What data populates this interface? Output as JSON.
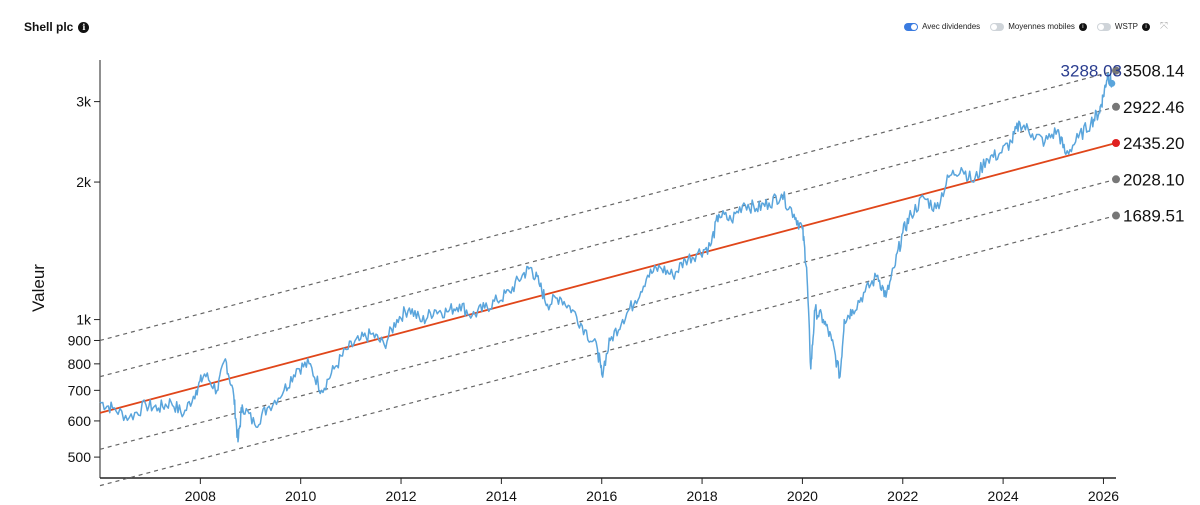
{
  "header": {
    "title": "Shell plc",
    "info_icon": "info-icon"
  },
  "toggles": [
    {
      "label": "Avec dividendes",
      "on": true
    },
    {
      "label": "Moyennes mobiles",
      "on": false,
      "info": true
    },
    {
      "label": "WSTP",
      "on": false,
      "info": true
    }
  ],
  "chart_data": {
    "type": "line",
    "ylabel": "Valeur",
    "yscale": "log",
    "ylim": [
      450,
      3700
    ],
    "xlim": [
      "2006-01-01",
      "2026-04-01"
    ],
    "x_ticks": [
      "2008",
      "2010",
      "2012",
      "2014",
      "2016",
      "2018",
      "2020",
      "2022",
      "2024",
      "2026"
    ],
    "y_ticks": [
      {
        "value": 500,
        "label": "500"
      },
      {
        "value": 600,
        "label": "600"
      },
      {
        "value": 700,
        "label": "700"
      },
      {
        "value": 800,
        "label": "800"
      },
      {
        "value": 900,
        "label": "900"
      },
      {
        "value": 1000,
        "label": "1k"
      },
      {
        "value": 2000,
        "label": "2k"
      },
      {
        "value": 3000,
        "label": "3k"
      }
    ],
    "colors": {
      "price": "#5aa5dc",
      "trend": "#e0461a",
      "band": "#666666",
      "current_label": "#2a3d8f"
    },
    "series": [
      {
        "points": [
          [
            "2006-01",
            660
          ],
          [
            "2006-04",
            640
          ],
          [
            "2006-08",
            610
          ],
          [
            "2006-12",
            650
          ],
          [
            "2007-03",
            640
          ],
          [
            "2007-06",
            660
          ],
          [
            "2007-09",
            620
          ],
          [
            "2007-12",
            700
          ],
          [
            "2008-02",
            760
          ],
          [
            "2008-05",
            700
          ],
          [
            "2008-07",
            820
          ],
          [
            "2008-09",
            680
          ],
          [
            "2008-10",
            540
          ],
          [
            "2008-11",
            650
          ],
          [
            "2009-02",
            590
          ],
          [
            "2009-05",
            640
          ],
          [
            "2009-09",
            700
          ],
          [
            "2009-12",
            780
          ],
          [
            "2010-03",
            800
          ],
          [
            "2010-06",
            700
          ],
          [
            "2010-09",
            780
          ],
          [
            "2010-12",
            860
          ],
          [
            "2011-03",
            900
          ],
          [
            "2011-06",
            930
          ],
          [
            "2011-09",
            880
          ],
          [
            "2011-12",
            1000
          ],
          [
            "2012-03",
            1060
          ],
          [
            "2012-06",
            990
          ],
          [
            "2012-09",
            1050
          ],
          [
            "2012-12",
            1040
          ],
          [
            "2013-03",
            1080
          ],
          [
            "2013-06",
            1020
          ],
          [
            "2013-09",
            1060
          ],
          [
            "2013-12",
            1100
          ],
          [
            "2014-03",
            1150
          ],
          [
            "2014-06",
            1250
          ],
          [
            "2014-08",
            1300
          ],
          [
            "2014-10",
            1200
          ],
          [
            "2014-12",
            1080
          ],
          [
            "2015-03",
            1120
          ],
          [
            "2015-06",
            1050
          ],
          [
            "2015-09",
            950
          ],
          [
            "2015-12",
            860
          ],
          [
            "2016-01",
            760
          ],
          [
            "2016-03",
            900
          ],
          [
            "2016-06",
            1000
          ],
          [
            "2016-09",
            1100
          ],
          [
            "2016-12",
            1250
          ],
          [
            "2017-03",
            1300
          ],
          [
            "2017-06",
            1250
          ],
          [
            "2017-09",
            1350
          ],
          [
            "2017-12",
            1400
          ],
          [
            "2018-03",
            1450
          ],
          [
            "2018-05",
            1700
          ],
          [
            "2018-08",
            1650
          ],
          [
            "2018-11",
            1800
          ],
          [
            "2019-02",
            1750
          ],
          [
            "2019-05",
            1800
          ],
          [
            "2019-08",
            1880
          ],
          [
            "2019-11",
            1700
          ],
          [
            "2020-01",
            1580
          ],
          [
            "2020-02",
            1300
          ],
          [
            "2020-03",
            780
          ],
          [
            "2020-04",
            1050
          ],
          [
            "2020-06",
            1000
          ],
          [
            "2020-08",
            900
          ],
          [
            "2020-10",
            750
          ],
          [
            "2020-11",
            1000
          ],
          [
            "2021-01",
            1050
          ],
          [
            "2021-04",
            1150
          ],
          [
            "2021-07",
            1250
          ],
          [
            "2021-09",
            1120
          ],
          [
            "2021-11",
            1300
          ],
          [
            "2022-01",
            1550
          ],
          [
            "2022-03",
            1700
          ],
          [
            "2022-06",
            1850
          ],
          [
            "2022-09",
            1750
          ],
          [
            "2022-12",
            2050
          ],
          [
            "2023-03",
            2150
          ],
          [
            "2023-06",
            2000
          ],
          [
            "2023-09",
            2250
          ],
          [
            "2023-12",
            2300
          ],
          [
            "2024-03",
            2450
          ],
          [
            "2024-05",
            2700
          ],
          [
            "2024-08",
            2550
          ],
          [
            "2024-11",
            2450
          ],
          [
            "2025-02",
            2600
          ],
          [
            "2025-04",
            2300
          ],
          [
            "2025-07",
            2500
          ],
          [
            "2025-10",
            2700
          ],
          [
            "2025-12",
            2850
          ],
          [
            "2026-01",
            3100
          ],
          [
            "2026-02",
            3450
          ],
          [
            "2026-03",
            3288.03
          ]
        ]
      }
    ],
    "trend_lines": [
      {
        "start_value": 900,
        "end_value": 3508.14,
        "label": "3508.14",
        "style": "dashed",
        "marker": "#777777"
      },
      {
        "start_value": 750,
        "end_value": 2922.46,
        "label": "2922.46",
        "style": "dashed",
        "marker": "#777777"
      },
      {
        "start_value": 625,
        "end_value": 2435.2,
        "label": "2435.20",
        "style": "solid",
        "marker": "#e02020"
      },
      {
        "start_value": 520,
        "end_value": 2028.1,
        "label": "2028.10",
        "style": "dashed",
        "marker": "#777777"
      },
      {
        "start_value": 433,
        "end_value": 1689.51,
        "label": "1689.51",
        "style": "dashed",
        "marker": "#777777"
      }
    ],
    "current": {
      "value": 3288.03,
      "label": "3288.03"
    }
  }
}
